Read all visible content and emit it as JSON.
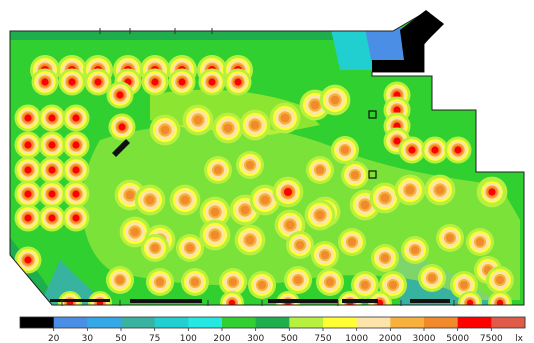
{
  "chart_data": {
    "type": "heatmap",
    "title": "",
    "legend": {
      "position": "bottom",
      "unit": "lx",
      "ticks": [
        "20",
        "30",
        "50",
        "75",
        "100",
        "200",
        "300",
        "500",
        "750",
        "1000",
        "2000",
        "3000",
        "5000",
        "7500"
      ],
      "bins": [
        {
          "min": null,
          "max": 20,
          "color": "#000000"
        },
        {
          "min": 20,
          "max": 30,
          "color": "#4a8ee6"
        },
        {
          "min": 30,
          "max": 50,
          "color": "#35a8e8"
        },
        {
          "min": 50,
          "max": 75,
          "color": "#37b3a0"
        },
        {
          "min": 75,
          "max": 100,
          "color": "#22cfd0"
        },
        {
          "min": 100,
          "max": 200,
          "color": "#25e8e2"
        },
        {
          "min": 200,
          "max": 300,
          "color": "#2fd02f"
        },
        {
          "min": 300,
          "max": 500,
          "color": "#1eae4e"
        },
        {
          "min": 500,
          "max": 750,
          "color": "#b8f040"
        },
        {
          "min": 750,
          "max": 1000,
          "color": "#ffff33"
        },
        {
          "min": 1000,
          "max": 2000,
          "color": "#fde4a8"
        },
        {
          "min": 2000,
          "max": 3000,
          "color": "#f7b13c"
        },
        {
          "min": 3000,
          "max": 5000,
          "color": "#f08a2a"
        },
        {
          "min": 5000,
          "max": 7500,
          "color": "#ff0000"
        },
        {
          "min": 7500,
          "max": null,
          "color": "#e05a4a"
        }
      ]
    }
  }
}
